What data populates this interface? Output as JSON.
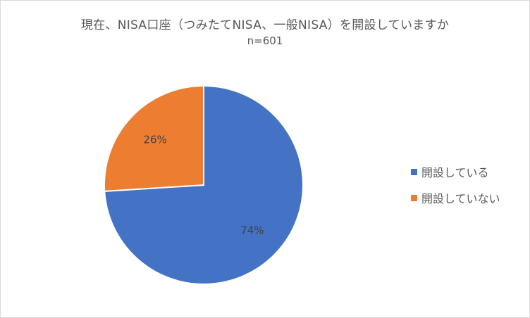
{
  "chart_data": {
    "type": "pie",
    "title": "現在、NISA口座（つみたてNISA、一般NISA）を開設していますか",
    "subtitle": "n=601",
    "categories": [
      "開設している",
      "開設していない"
    ],
    "values": [
      74,
      26
    ],
    "data_labels": [
      "74%",
      "26%"
    ],
    "colors": [
      "#4472c4",
      "#ed7d31"
    ],
    "legend": "right"
  }
}
